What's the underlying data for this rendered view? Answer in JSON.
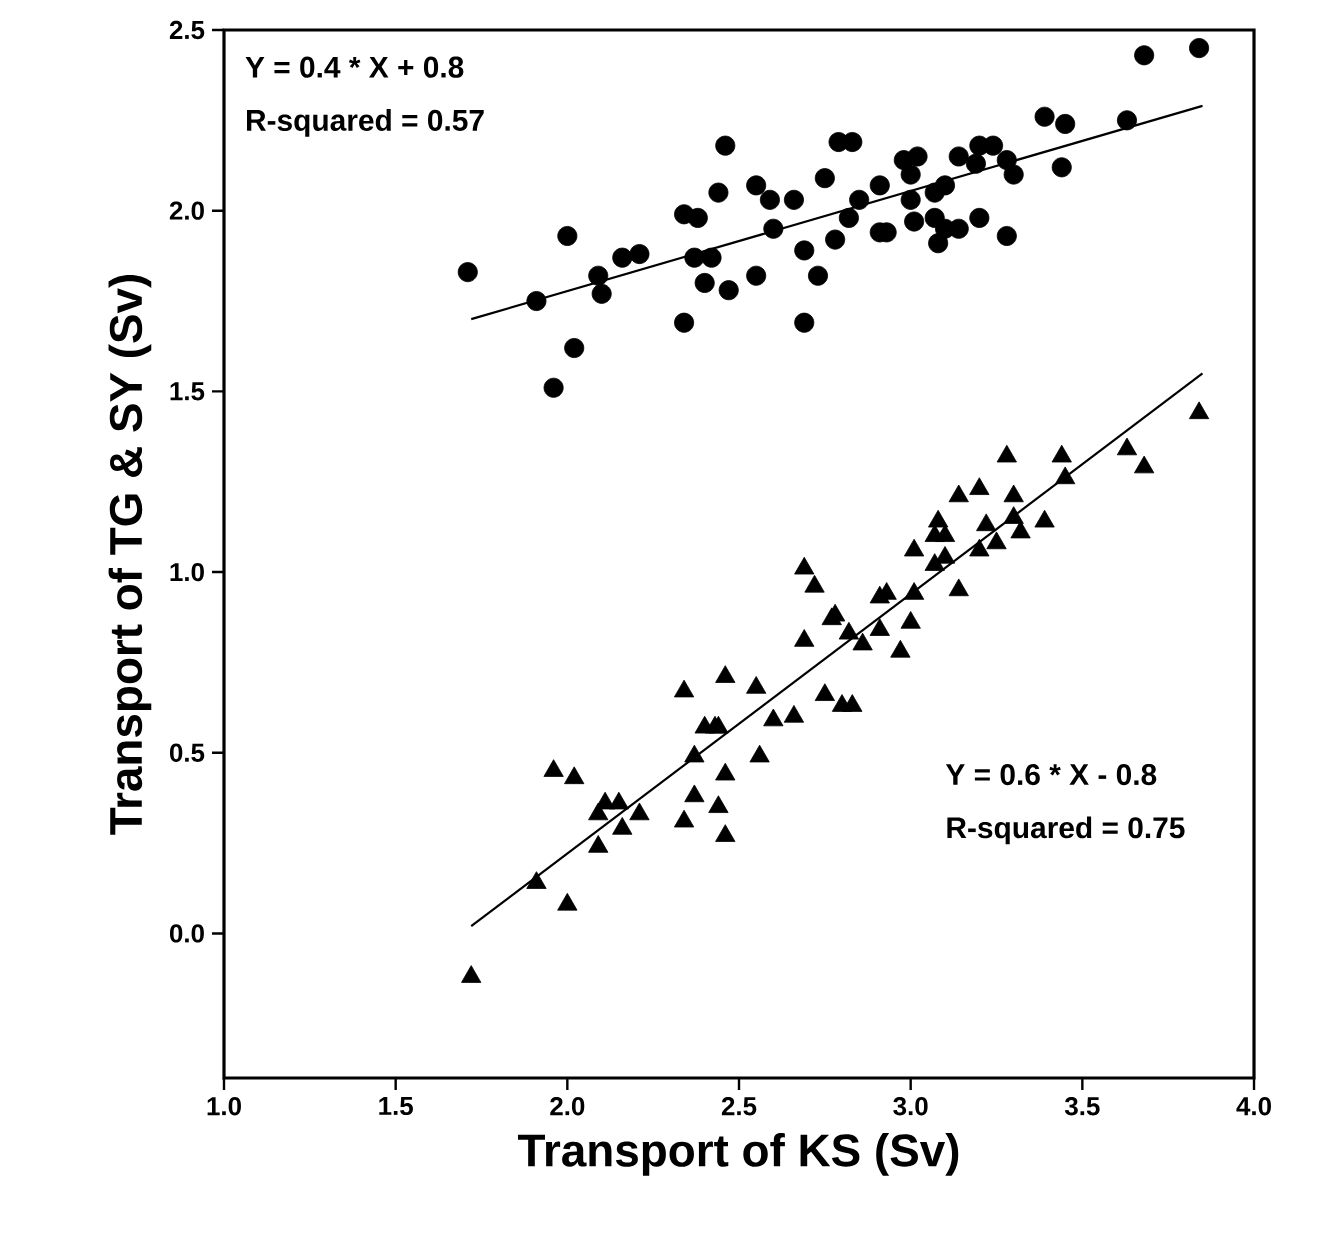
{
  "chart_data": {
    "type": "scatter",
    "xlabel": "Transport of KS (Sv)",
    "ylabel": "Transport of TG & SY (Sv)",
    "xlim": [
      1.0,
      4.0
    ],
    "ylim": [
      -0.4,
      2.5
    ],
    "xticks": [
      {
        "value": 1.0,
        "label": "1.0"
      },
      {
        "value": 1.5,
        "label": "1.5"
      },
      {
        "value": 2.0,
        "label": "2.0"
      },
      {
        "value": 2.5,
        "label": "2.5"
      },
      {
        "value": 3.0,
        "label": "3.0"
      },
      {
        "value": 3.5,
        "label": "3.5"
      },
      {
        "value": 4.0,
        "label": "4.0"
      }
    ],
    "yticks": [
      {
        "value": 0.0,
        "label": "0.0"
      },
      {
        "value": 0.5,
        "label": "0.5"
      },
      {
        "value": 1.0,
        "label": "1.0"
      },
      {
        "value": 1.5,
        "label": "1.5"
      },
      {
        "value": 2.0,
        "label": "2.0"
      },
      {
        "value": 2.5,
        "label": "2.5"
      }
    ],
    "grid": false,
    "annotations": [
      "Y = 0.4 * X + 0.8",
      "R-squared = 0.57",
      "Y = 0.6 * X - 0.8",
      "R-squared = 0.75"
    ],
    "series": [
      {
        "marker": "circle",
        "color": "#000000",
        "x": [
          1.71,
          1.91,
          2.0,
          2.02,
          1.96,
          2.09,
          2.1,
          2.16,
          2.21,
          2.34,
          2.38,
          2.37,
          2.42,
          2.4,
          2.34,
          2.47,
          2.46,
          2.44,
          2.55,
          2.59,
          2.66,
          2.6,
          2.55,
          2.69,
          2.73,
          2.69,
          2.75,
          2.79,
          2.83,
          2.91,
          2.85,
          2.82,
          2.78,
          2.91,
          2.93,
          2.98,
          3.02,
          3.0,
          3.0,
          3.01,
          3.07,
          3.1,
          3.07,
          3.1,
          3.08,
          3.14,
          3.2,
          3.24,
          3.19,
          3.28,
          3.3,
          3.2,
          3.14,
          3.28,
          3.39,
          3.45,
          3.44,
          3.63,
          3.68,
          3.84
        ],
        "values": [
          1.83,
          1.75,
          1.93,
          1.62,
          1.51,
          1.82,
          1.77,
          1.87,
          1.88,
          1.99,
          1.98,
          1.87,
          1.87,
          1.8,
          1.69,
          1.78,
          2.18,
          2.05,
          2.07,
          2.03,
          2.03,
          1.95,
          1.82,
          1.89,
          1.82,
          1.69,
          2.09,
          2.19,
          2.19,
          2.07,
          2.03,
          1.98,
          1.92,
          1.94,
          1.94,
          2.14,
          2.15,
          2.1,
          2.03,
          1.97,
          2.05,
          2.07,
          1.98,
          1.95,
          1.91,
          2.15,
          2.18,
          2.18,
          2.13,
          2.14,
          2.1,
          1.98,
          1.95,
          1.93,
          2.26,
          2.24,
          2.12,
          2.25,
          2.43,
          2.45
        ]
      },
      {
        "marker": "triangle",
        "color": "#000000",
        "x": [
          1.72,
          1.91,
          2.0,
          1.96,
          2.02,
          2.09,
          2.11,
          2.15,
          2.09,
          2.16,
          2.21,
          2.34,
          2.34,
          2.46,
          2.55,
          2.4,
          2.43,
          2.44,
          2.37,
          2.46,
          2.37,
          2.44,
          2.46,
          2.56,
          2.6,
          2.66,
          2.69,
          2.75,
          2.77,
          2.69,
          2.72,
          2.78,
          2.82,
          2.86,
          2.91,
          2.93,
          2.91,
          3.0,
          3.01,
          2.97,
          2.8,
          2.83,
          3.01,
          3.08,
          3.07,
          3.1,
          3.07,
          3.1,
          3.14,
          3.2,
          3.14,
          3.22,
          3.2,
          3.25,
          3.3,
          3.3,
          3.32,
          3.39,
          3.28,
          3.44,
          3.45,
          3.63,
          3.68,
          3.84
        ],
        "values": [
          -0.12,
          0.14,
          0.08,
          0.45,
          0.43,
          0.33,
          0.36,
          0.36,
          0.24,
          0.29,
          0.33,
          0.31,
          0.67,
          0.71,
          0.68,
          0.57,
          0.57,
          0.57,
          0.49,
          0.44,
          0.38,
          0.35,
          0.27,
          0.49,
          0.59,
          0.6,
          0.81,
          0.66,
          0.87,
          1.01,
          0.96,
          0.88,
          0.83,
          0.8,
          0.93,
          0.94,
          0.84,
          0.86,
          0.94,
          0.78,
          0.63,
          0.63,
          1.06,
          1.14,
          1.1,
          1.1,
          1.02,
          1.04,
          1.21,
          1.23,
          0.95,
          1.13,
          1.06,
          1.08,
          1.21,
          1.15,
          1.11,
          1.14,
          1.32,
          1.32,
          1.26,
          1.34,
          1.29,
          1.44
        ]
      },
      {
        "type": "line",
        "marker": "none",
        "color": "#000000",
        "x": [
          1.72,
          3.85
        ],
        "values": [
          1.7,
          2.29
        ]
      },
      {
        "type": "line",
        "marker": "none",
        "color": "#000000",
        "x": [
          1.72,
          3.85
        ],
        "values": [
          0.02,
          1.55
        ]
      }
    ]
  }
}
